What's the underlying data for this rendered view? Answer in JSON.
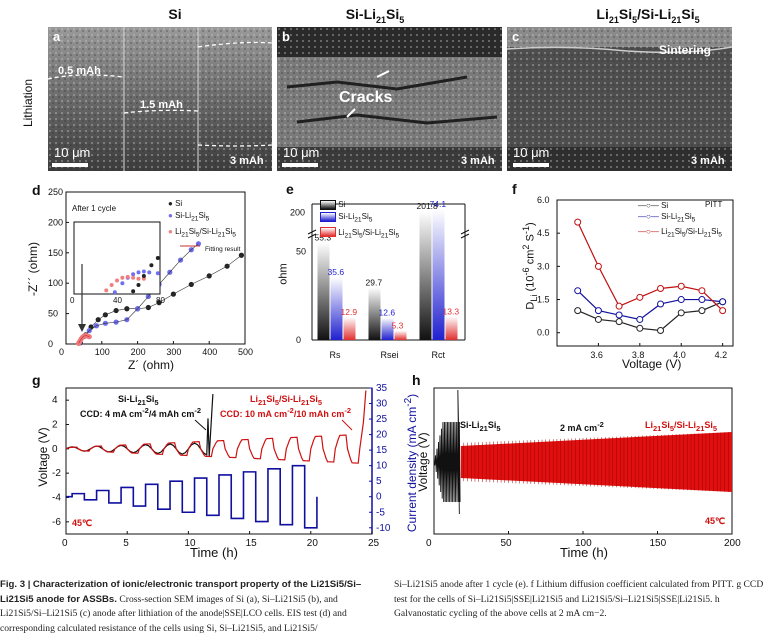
{
  "sem": {
    "columns": {
      "si": "Si",
      "si_li": "Si-Li21Si5",
      "li_si_li": "Li21Si5/Si-Li21Si5"
    },
    "row_label": "Lithiation",
    "panels": [
      {
        "letter": "a",
        "scale": "10 μm",
        "capacities": [
          "0.5 mAh",
          "1.5 mAh",
          "3 mAh"
        ]
      },
      {
        "letter": "b",
        "scale": "10 μm",
        "capacity": "3 mAh",
        "annotation": "Cracks"
      },
      {
        "letter": "c",
        "scale": "10 μm",
        "capacity": "3 mAh",
        "annotation": "Sintering"
      }
    ]
  },
  "panel_d": {
    "letter": "d",
    "title": "",
    "xlabel": "Z´ (ohm)",
    "ylabel": "-Z´´ (ohm)",
    "inset_title": "After 1 cycle",
    "fitting_label": "Fitting result",
    "legend": [
      "Si",
      "Si-Li21Si5",
      "Li21Si5/Si-Li21Si5"
    ],
    "colors": [
      "#222222",
      "#6e6ef0",
      "#f07878"
    ]
  },
  "panel_e": {
    "letter": "e",
    "ylabel": "ohm",
    "legend": [
      "Si",
      "Si-Li21Si5",
      "Li21Si5/Si-Li21Si5"
    ]
  },
  "panel_f": {
    "letter": "f",
    "xlabel": "Voltage (V)",
    "ylabel": "DLi (10-6 cm2 S-1)",
    "method": "PITT",
    "legend": [
      "Si",
      "Si-Li21Si5",
      "Li21Si5/Si-Li21Si5"
    ]
  },
  "panel_g": {
    "letter": "g",
    "xlabel": "Time (h)",
    "ylabel_left": "Voltage (V)",
    "ylabel_right": "Current density (mA cm-2)",
    "label1": "Si-Li21Si5",
    "ccd1": "CCD: 4 mA cm-2/4 mAh cm-2",
    "label2": "Li21Si5/Si-Li21Si5",
    "ccd2": "CCD: 10 mA cm-2/10 mAh cm-2",
    "temp": "45℃"
  },
  "panel_h": {
    "letter": "h",
    "xlabel": "Time (h)",
    "ylabel": "Voltage (V)",
    "label1": "Si-Li21Si5",
    "label_mid": "2 mA cm-2",
    "label2": "Li21Si5/Si-Li21Si5",
    "temp": "45℃"
  },
  "chart_data": [
    {
      "type": "line",
      "id": "d",
      "title": "EIS after 1 cycle",
      "xlabel": "Z´ (ohm)",
      "ylabel": "-Z´´ (ohm)",
      "xlim": [
        0,
        500
      ],
      "ylim": [
        0,
        250
      ],
      "xticks": [
        0,
        100,
        200,
        300,
        400,
        500
      ],
      "yticks": [
        0,
        50,
        100,
        150,
        200,
        250
      ],
      "series": [
        {
          "name": "Si",
          "x": [
            40,
            55,
            70,
            90,
            110,
            140,
            170,
            200,
            230,
            260,
            300,
            350,
            400,
            450,
            490
          ],
          "y": [
            2,
            15,
            28,
            40,
            48,
            55,
            58,
            58,
            60,
            68,
            82,
            98,
            112,
            128,
            146
          ]
        },
        {
          "name": "Si-Li21Si5",
          "x": [
            38,
            50,
            65,
            85,
            110,
            140,
            170,
            200,
            230,
            260,
            290,
            320,
            350,
            370
          ],
          "y": [
            2,
            12,
            22,
            30,
            34,
            36,
            40,
            58,
            78,
            98,
            118,
            138,
            155,
            165
          ]
        },
        {
          "name": "Li21Si5/Si-Li21Si5",
          "x": [
            35,
            38,
            42,
            46,
            50,
            55,
            60,
            65
          ],
          "y": [
            1,
            4,
            8,
            11,
            13,
            14,
            13,
            12
          ]
        }
      ],
      "inset": {
        "xlim": [
          0,
          80
        ],
        "ylim": [
          0,
          80
        ],
        "xticks": [
          0,
          40,
          80
        ]
      }
    },
    {
      "type": "bar",
      "id": "e",
      "ylabel": "ohm",
      "ybreak": [
        60,
        180
      ],
      "categories": [
        "Rs",
        "Rsei",
        "Rct"
      ],
      "yticks_low": [
        0,
        50
      ],
      "yticks_high": [
        200
      ],
      "series": [
        {
          "name": "Si",
          "values": [
            55.3,
            29.7,
            201.8
          ]
        },
        {
          "name": "Si-Li21Si5",
          "values": [
            35.6,
            12.6,
            74.1
          ]
        },
        {
          "name": "Li21Si5/Si-Li21Si5",
          "values": [
            12.9,
            5.3,
            13.3
          ]
        }
      ]
    },
    {
      "type": "line",
      "id": "f",
      "xlabel": "Voltage (V)",
      "ylabel": "DLi (10-6 cm2 S-1)",
      "xlim": [
        3.4,
        4.25
      ],
      "ylim": [
        -0.6,
        6.0
      ],
      "xticks": [
        3.6,
        3.8,
        4.0,
        4.2
      ],
      "yticks": [
        0.0,
        1.5,
        3.0,
        4.5,
        6.0
      ],
      "x": [
        3.5,
        3.6,
        3.7,
        3.8,
        3.9,
        4.0,
        4.1,
        4.2
      ],
      "series": [
        {
          "name": "Si",
          "values": [
            1.0,
            0.6,
            0.5,
            0.2,
            0.1,
            0.9,
            1.0,
            1.4
          ]
        },
        {
          "name": "Si-Li21Si5",
          "values": [
            1.9,
            1.0,
            0.8,
            0.6,
            1.3,
            1.5,
            1.5,
            1.4
          ]
        },
        {
          "name": "Li21Si5/Si-Li21Si5",
          "values": [
            5.0,
            3.0,
            1.2,
            1.6,
            2.0,
            2.1,
            1.9,
            1.0
          ]
        }
      ]
    },
    {
      "type": "line",
      "id": "g",
      "xlabel": "Time (h)",
      "xlim": [
        0,
        25
      ],
      "xticks": [
        0,
        5,
        10,
        15,
        20,
        25
      ],
      "ylim_left": [
        -7,
        5
      ],
      "yticks_left": [
        -6,
        -4,
        -2,
        0,
        2,
        4
      ],
      "ylim_right": [
        -12,
        35
      ],
      "yticks_right": [
        -10,
        -5,
        0,
        5,
        10,
        15,
        20,
        25,
        30,
        35
      ],
      "series": [
        {
          "name": "Si-Li21Si5",
          "description": "voltage",
          "short_circuit_h": 11.5
        },
        {
          "name": "Li21Si5/Si-Li21Si5",
          "description": "voltage",
          "short_circuit_h": 24.0
        },
        {
          "name": "Current density",
          "step_h": 1,
          "amplitudes_mA_cm2": [
            1,
            2,
            3,
            4,
            5,
            6,
            7,
            8,
            9,
            10
          ]
        }
      ]
    },
    {
      "type": "line",
      "id": "h",
      "xlabel": "Time (h)",
      "xlim": [
        0,
        200
      ],
      "xticks": [
        0,
        50,
        100,
        150,
        200
      ],
      "series": [
        {
          "name": "Si-Li21Si5",
          "x_end_h": 18,
          "amplitude": 1.3
        },
        {
          "name": "Li21Si5/Si-Li21Si5",
          "x_range_h": [
            18,
            200
          ],
          "amplitude": 0.35
        }
      ]
    }
  ],
  "caption": {
    "fig": "Fig. 3 |",
    "title": "Characterization of ionic/electronic transport property of the Li21Si5/Si–Li21Si5 anode for ASSBs.",
    "left_rest": "Cross-section SEM images of Si (a), Si–Li21Si5 (b), and Li21Si5/Si–Li21Si5 (c) anode after lithiation of the anode|SSE|LCO cells. EIS test (d) and corresponding calculated resistance of the cells using Si, Si–Li21Si5, and Li21Si5/",
    "right": "Si–Li21Si5 anode after 1 cycle (e). f Lithium diffusion coefficient calculated from PITT. g CCD test for the cells of Si–Li21Si5|SSE|Li21Si5 and Li21Si5/Si–Li21Si5|SSE|Li21Si5. h Galvanostatic cycling of the above cells at 2 mA cm−2."
  }
}
